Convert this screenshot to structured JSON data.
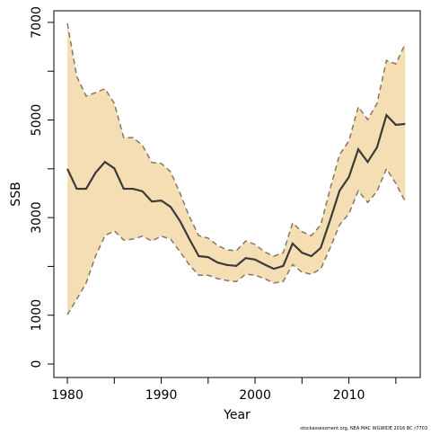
{
  "chart_data": {
    "type": "band-line",
    "xlabel": "Year",
    "ylabel": "SSB",
    "annotation": "stockassessment.org, NEA MAC WGWIDE 2016 BC r7703",
    "x": [
      1980,
      1981,
      1982,
      1983,
      1984,
      1985,
      1986,
      1987,
      1988,
      1989,
      1990,
      1991,
      1992,
      1993,
      1994,
      1995,
      1996,
      1997,
      1998,
      1999,
      2000,
      2001,
      2002,
      2003,
      2004,
      2005,
      2006,
      2007,
      2008,
      2009,
      2010,
      2011,
      2012,
      2013,
      2014,
      2015,
      2016
    ],
    "values": [
      4000,
      3590,
      3590,
      3920,
      4140,
      4010,
      3590,
      3590,
      3540,
      3330,
      3350,
      3220,
      2930,
      2560,
      2210,
      2190,
      2080,
      2030,
      2010,
      2170,
      2140,
      2040,
      1950,
      2010,
      2470,
      2280,
      2210,
      2380,
      2950,
      3550,
      3830,
      4400,
      4140,
      4440,
      5100,
      4900,
      4920
    ],
    "upper": [
      6980,
      5890,
      5490,
      5560,
      5640,
      5340,
      4640,
      4640,
      4480,
      4130,
      4110,
      3940,
      3500,
      3020,
      2630,
      2580,
      2430,
      2340,
      2320,
      2520,
      2450,
      2300,
      2210,
      2280,
      2890,
      2710,
      2630,
      2850,
      3590,
      4290,
      4570,
      5270,
      5010,
      5340,
      6220,
      6150,
      6560
    ],
    "lower": [
      1010,
      1330,
      1660,
      2210,
      2630,
      2730,
      2540,
      2560,
      2620,
      2520,
      2620,
      2560,
      2300,
      2030,
      1820,
      1820,
      1750,
      1710,
      1690,
      1840,
      1820,
      1750,
      1660,
      1690,
      2040,
      1880,
      1840,
      1950,
      2380,
      2850,
      3080,
      3550,
      3310,
      3540,
      4000,
      3700,
      3330
    ],
    "line_color": "#3a3a3a",
    "band_color": "#f5deb3",
    "bound_color": "#857766",
    "xlim": [
      1978.56,
      2017.6
    ],
    "ylim": [
      -276,
      7238
    ],
    "xticks": [
      1980,
      {
        "value": 1985,
        "label": null
      },
      1990,
      {
        "value": 1995,
        "label": null
      },
      2000,
      {
        "value": 2005,
        "label": null
      },
      2010,
      {
        "value": 2015,
        "label": null
      }
    ],
    "yticks": [
      0,
      1000,
      {
        "value": 2000,
        "label": null
      },
      3000,
      {
        "value": 4000,
        "label": null
      },
      5000,
      {
        "value": 6000,
        "label": null
      },
      7000
    ]
  }
}
